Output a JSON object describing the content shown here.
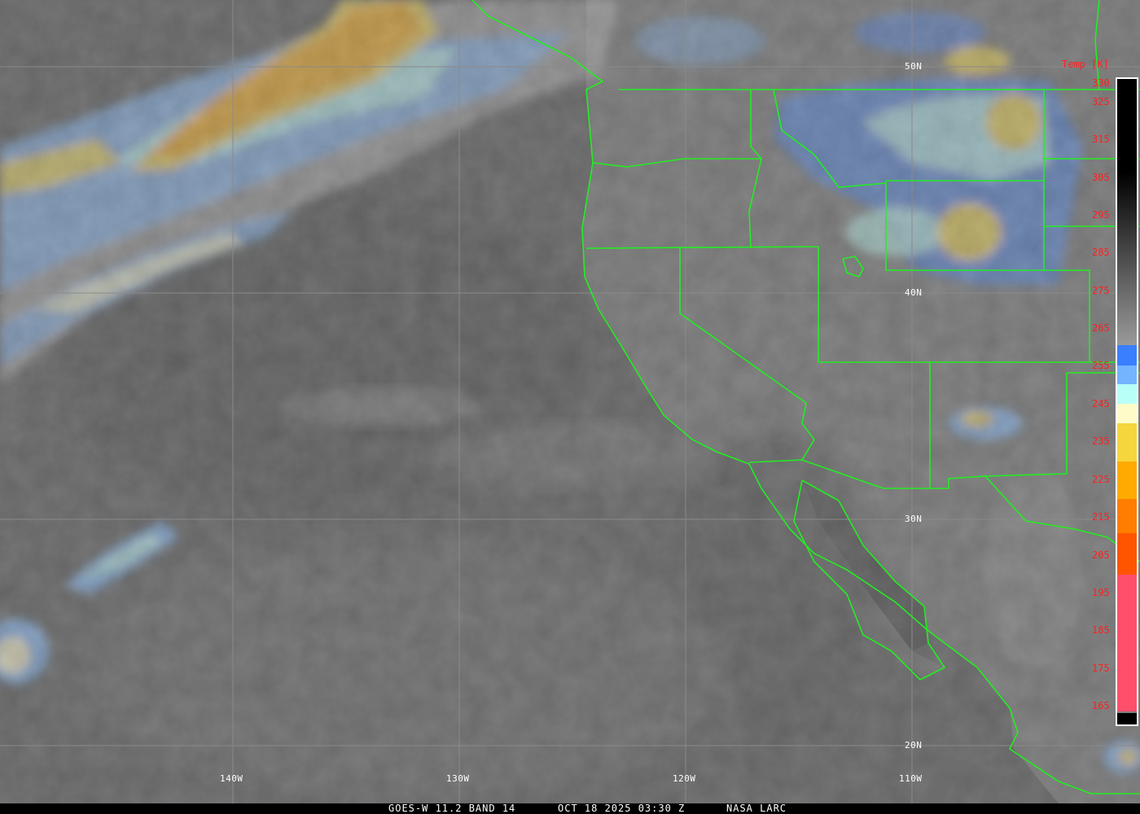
{
  "footer": {
    "satellite": "GOES-W 11.2 BAND 14",
    "datetime": "OCT 18 2025 03:30 Z",
    "credit": "NASA LARC"
  },
  "grid": {
    "latitudes": [
      "50N",
      "40N",
      "30N",
      "20N"
    ],
    "longitudes": [
      "140W",
      "130W",
      "120W",
      "110W"
    ]
  },
  "colorbar": {
    "title": "Temp [K]",
    "ticks": [
      "330",
      "325",
      "315",
      "305",
      "295",
      "285",
      "275",
      "265",
      "255",
      "245",
      "235",
      "225",
      "215",
      "205",
      "195",
      "185",
      "175",
      "165"
    ],
    "colors": {
      "warm_top": "#000000",
      "gray_mid": "#9a9a9a",
      "blue": "#3a7fff",
      "light_blue": "#74b4ff",
      "cyan": "#b8fff8",
      "cream": "#fffbc8",
      "yellow": "#f5d63c",
      "orange": "#ffaa00",
      "dark_orange": "#ff7d00",
      "red_orange": "#ff5500",
      "pink": "#ff4f6b"
    }
  },
  "overlay_colors": {
    "boundaries": "#22ee22",
    "grid": "#8a8a8a",
    "labels": "#ff2020"
  }
}
